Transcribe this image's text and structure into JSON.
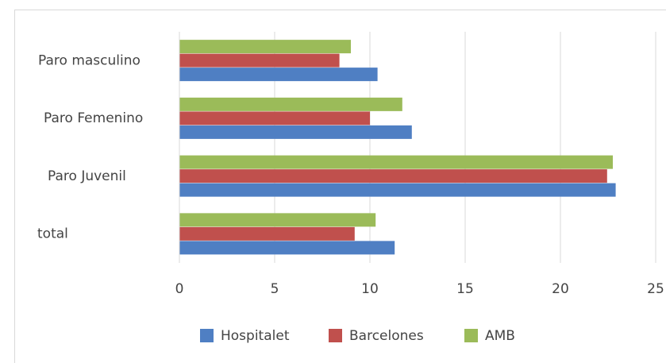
{
  "chart_data": {
    "type": "hbar",
    "categories": [
      "Paro masculino",
      "Paro Femenino",
      "Paro Juvenil",
      "total"
    ],
    "series": [
      {
        "name": "Hospitalet",
        "color": "#4f7fc3",
        "values": [
          10.4,
          12.2,
          22.9,
          11.3
        ]
      },
      {
        "name": "Barcelones",
        "color": "#c0504d",
        "values": [
          8.4,
          10.0,
          22.45,
          9.2
        ]
      },
      {
        "name": "AMB",
        "color": "#9bbb59",
        "values": [
          9.0,
          11.7,
          22.75,
          10.3
        ]
      }
    ],
    "xlim": [
      0,
      25
    ],
    "xticks": [
      0,
      5,
      10,
      15,
      20,
      25
    ],
    "grid": true,
    "legend": "bottom"
  }
}
